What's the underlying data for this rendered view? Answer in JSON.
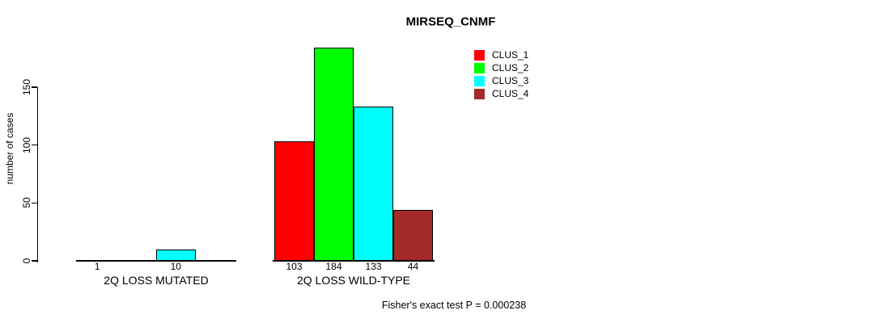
{
  "chart_data": {
    "type": "bar",
    "title": "MIRSEQ_CNMF",
    "ylabel": "number of cases",
    "xlabel": "",
    "categories": [
      "2Q LOSS MUTATED",
      "2Q LOSS WILD-TYPE"
    ],
    "series": [
      {
        "name": "CLUS_1",
        "color": "#ff0000",
        "values": [
          1,
          103
        ]
      },
      {
        "name": "CLUS_2",
        "color": "#00ff00",
        "values": [
          0,
          184
        ]
      },
      {
        "name": "CLUS_3",
        "color": "#00ffff",
        "values": [
          10,
          133
        ]
      },
      {
        "name": "CLUS_4",
        "color": "#a52a2a",
        "values": [
          0,
          44
        ]
      }
    ],
    "bar_value_labels": [
      [
        "1",
        "",
        "10",
        ""
      ],
      [
        "103",
        "184",
        "133",
        "44"
      ]
    ],
    "yticks": [
      0,
      50,
      100,
      150
    ],
    "ylim": [
      0,
      184
    ],
    "grid": false,
    "legend": {
      "position": "top-right",
      "entries": [
        "CLUS_1",
        "CLUS_2",
        "CLUS_3",
        "CLUS_4"
      ]
    },
    "annotation": "Fisher's exact test P = 0.000238"
  }
}
